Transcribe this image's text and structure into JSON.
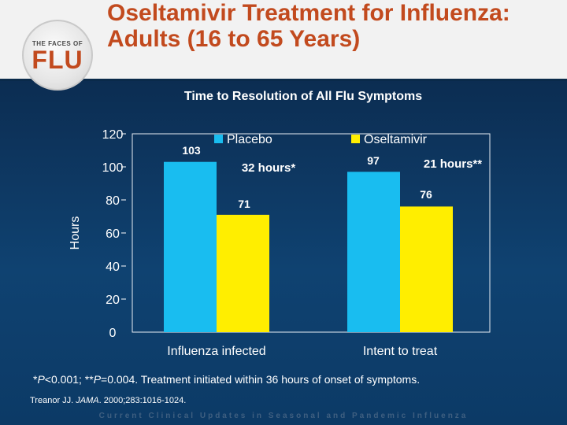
{
  "logo": {
    "top_text": "THE FACES OF",
    "main_text": "FLU"
  },
  "slide": {
    "title": "Oseltamivir Treatment for Influenza: Adults (16 to 65 Years)",
    "footnote_parts": [
      "*",
      "P",
      "<0.001; **",
      "P",
      "=0.004. Treatment initiated within 36 hours of onset of symptoms."
    ],
    "citation_parts": [
      "Treanor JJ. ",
      "JAMA",
      ". 2000;283:1016-1024."
    ],
    "banner": "Current Clinical Updates in Seasonal and Pandemic Influenza"
  },
  "chart_data": {
    "type": "bar",
    "title": "Time to Resolution of All Flu Symptoms",
    "ylabel": "Hours",
    "xlabel": "",
    "ylim": [
      0,
      120
    ],
    "yticks": [
      0,
      20,
      40,
      60,
      80,
      100,
      120
    ],
    "categories": [
      "Influenza infected",
      "Intent to treat"
    ],
    "series": [
      {
        "name": "Placebo",
        "values": [
          103,
          97
        ],
        "color": "#19bdf0"
      },
      {
        "name": "Oseltamivir",
        "values": [
          71,
          76
        ],
        "color": "#ffee00"
      }
    ],
    "annotations": [
      "32 hours*",
      "21 hours**"
    ],
    "legend": "top",
    "grid": false
  }
}
